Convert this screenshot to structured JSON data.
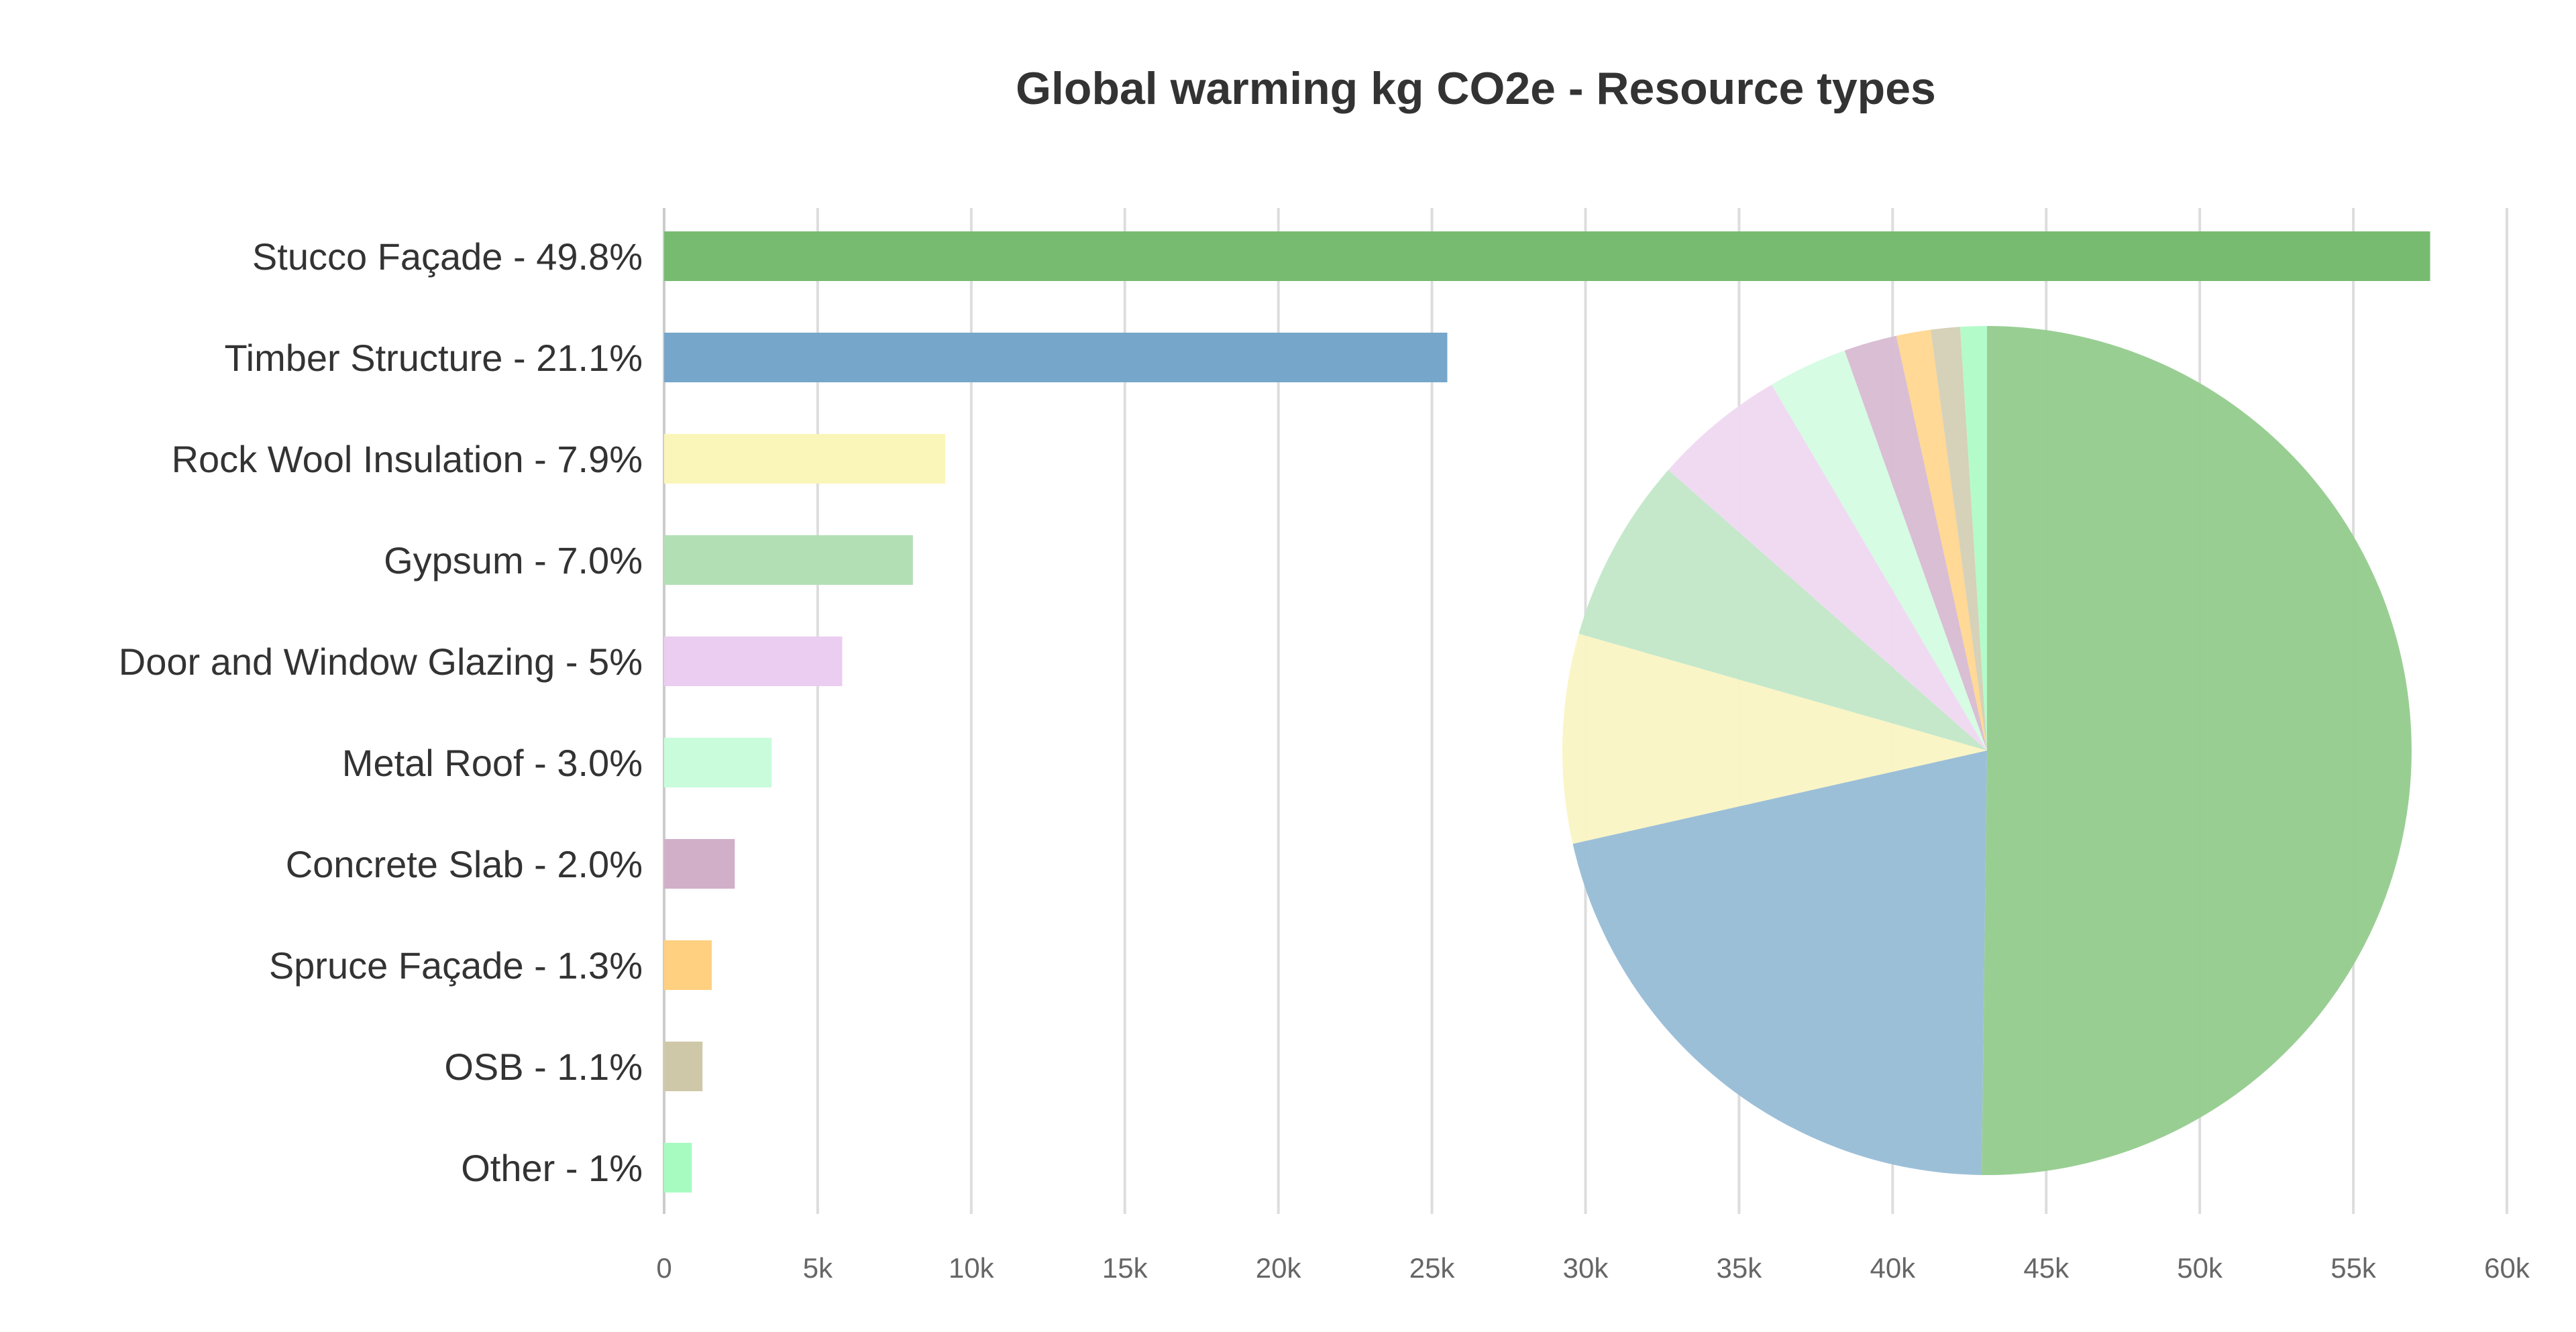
{
  "chart_data": {
    "type": "bar",
    "title": "Global warming kg CO2e - Resource types",
    "xlabel": "",
    "ylabel": "",
    "categories": [
      "Stucco Façade - 49.8%",
      "Timber Structure - 21.1%",
      "Rock Wool Insulation - 7.9%",
      "Gypsum - 7.0%",
      "Door and Window Glazing - 5%",
      "Metal Roof - 3.0%",
      "Concrete Slab - 2.0%",
      "Spruce Façade - 1.3%",
      "OSB - 1.1%",
      "Other - 1%"
    ],
    "values": [
      57500,
      25500,
      9150,
      8100,
      5800,
      3500,
      2300,
      1550,
      1250,
      900
    ],
    "pie_shares": [
      49.8,
      21.1,
      7.9,
      7.0,
      5.0,
      3.0,
      2.0,
      1.3,
      1.1,
      1.0
    ],
    "colors": [
      "#77bb70",
      "#76a6c9",
      "#faf5b8",
      "#b3dfb4",
      "#ebcdf1",
      "#c8fcdb",
      "#d2afc8",
      "#ffd07f",
      "#cfc8a8",
      "#a7fbc0"
    ],
    "pie_colors": [
      "#96cc8f",
      "#99bdd7",
      "#faf5c4",
      "#c3e7c9",
      "#f0d9f2",
      "#d5fce3",
      "#d8bcd3",
      "#ffd892",
      "#d5cfb7",
      "#b2fbc8"
    ],
    "xlim": [
      0,
      60000
    ],
    "x_ticks": [
      {
        "value": 0,
        "label": "0"
      },
      {
        "value": 5000,
        "label": "5k"
      },
      {
        "value": 10000,
        "label": "10k"
      },
      {
        "value": 15000,
        "label": "15k"
      },
      {
        "value": 20000,
        "label": "20k"
      },
      {
        "value": 25000,
        "label": "25k"
      },
      {
        "value": 30000,
        "label": "30k"
      },
      {
        "value": 35000,
        "label": "35k"
      },
      {
        "value": 40000,
        "label": "40k"
      },
      {
        "value": 45000,
        "label": "45k"
      },
      {
        "value": 50000,
        "label": "50k"
      },
      {
        "value": 55000,
        "label": "55k"
      },
      {
        "value": 60000,
        "label": "60k"
      }
    ],
    "grid": true,
    "legend": "none"
  }
}
